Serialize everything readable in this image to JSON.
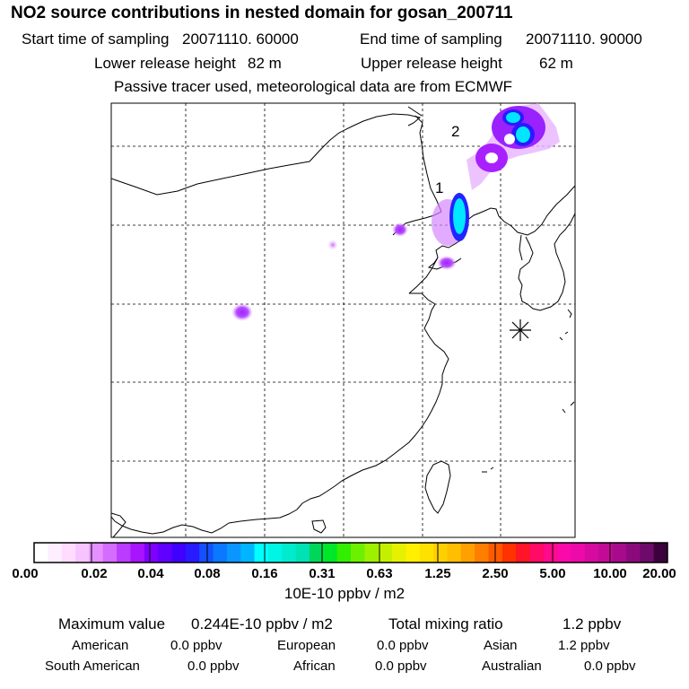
{
  "title": "NO2 source contributions in nested domain for gosan_200711",
  "header": {
    "start_label": "Start time of sampling",
    "start_value": "20071110. 60000",
    "end_label": "End time of sampling",
    "end_value": "20071110. 90000",
    "lower_label": "Lower release height",
    "lower_value": "82 m",
    "upper_label": "Upper release height",
    "upper_value": "62 m",
    "note": "Passive tracer used, meteorological data are from ECMWF"
  },
  "map": {
    "source_labels": [
      "1",
      "2"
    ],
    "receptor": "gosan-receptor-marker"
  },
  "colorbar": {
    "ticks": [
      "0.00",
      "0.02",
      "0.04",
      "0.08",
      "0.16",
      "0.31",
      "0.63",
      "1.25",
      "2.50",
      "5.00",
      "10.00",
      "20.00"
    ],
    "units": "10E-10 ppbv / m2",
    "colors": [
      "#ffffff",
      "#ffeeff",
      "#ffdcff",
      "#f8c4ff",
      "#e490ff",
      "#d36cff",
      "#bb3cff",
      "#a914ff",
      "#7f00ff",
      "#6000ff",
      "#4000ff",
      "#2a1aff",
      "#1450ff",
      "#0a78ff",
      "#0a96ff",
      "#00b4ff",
      "#00ffff",
      "#00f5e6",
      "#00ebcd",
      "#00e1b4",
      "#00d75a",
      "#00e628",
      "#32ee00",
      "#6cf000",
      "#9cf000",
      "#c4f000",
      "#e6f000",
      "#ffef00",
      "#ffe100",
      "#ffd000",
      "#ffbe00",
      "#ffa000",
      "#ff7e00",
      "#ff5a00",
      "#ff3200",
      "#ff1428",
      "#ff0a64",
      "#ff0a8c",
      "#fa0aaa",
      "#ec0aaa",
      "#d70aa0",
      "#c30a96",
      "#a80a8c",
      "#8a0a7c",
      "#6e0a6a",
      "#3c003c"
    ]
  },
  "summary": {
    "max_label": "Maximum value",
    "max_value": "0.244E-10 ppbv / m2",
    "total_label": "Total mixing ratio",
    "total_value": "1.2 ppbv",
    "regions": [
      {
        "name": "American",
        "value": "0.0 ppbv"
      },
      {
        "name": "European",
        "value": "0.0 ppbv"
      },
      {
        "name": "Asian",
        "value": "1.2 ppbv"
      },
      {
        "name": "South American",
        "value": "0.0 ppbv"
      },
      {
        "name": "African",
        "value": "0.0 ppbv"
      },
      {
        "name": "Australian",
        "value": "0.0 ppbv"
      }
    ]
  }
}
